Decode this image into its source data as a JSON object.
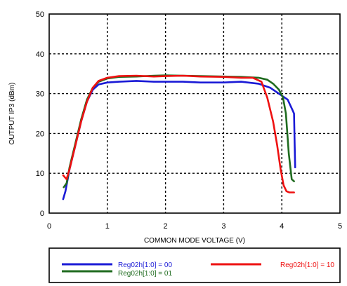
{
  "chart_data": {
    "type": "line",
    "title": "",
    "xlabel": "COMMON MODE VOLTAGE (V)",
    "ylabel": "OUTPUT IP3 (dBm)",
    "xlim": [
      0,
      5
    ],
    "ylim": [
      0,
      50
    ],
    "xticks": [
      "0",
      "1",
      "2",
      "3",
      "4",
      "5"
    ],
    "yticks": [
      "0",
      "10",
      "20",
      "30",
      "40",
      "50"
    ],
    "grid": true,
    "legend_placement": "bottom",
    "series": [
      {
        "name": "Reg02h[1:0] = 00",
        "color": "#1a1ad6",
        "points": [
          [
            0.24,
            3.5
          ],
          [
            0.28,
            5.5
          ],
          [
            0.35,
            11
          ],
          [
            0.45,
            17
          ],
          [
            0.55,
            23
          ],
          [
            0.65,
            28
          ],
          [
            0.75,
            31
          ],
          [
            0.85,
            32.3
          ],
          [
            1.0,
            32.8
          ],
          [
            1.2,
            33.0
          ],
          [
            1.5,
            33.2
          ],
          [
            1.8,
            33.0
          ],
          [
            2.0,
            33.0
          ],
          [
            2.3,
            33.0
          ],
          [
            2.6,
            32.8
          ],
          [
            3.0,
            32.8
          ],
          [
            3.3,
            33.0
          ],
          [
            3.6,
            32.5
          ],
          [
            3.8,
            31.5
          ],
          [
            4.0,
            29.5
          ],
          [
            4.1,
            28.5
          ],
          [
            4.18,
            26
          ],
          [
            4.21,
            25
          ],
          [
            4.22,
            18
          ],
          [
            4.23,
            11.5
          ]
        ]
      },
      {
        "name": "Reg02h[1:0] = 01",
        "color": "#1f6b1f",
        "points": [
          [
            0.25,
            6.5
          ],
          [
            0.3,
            7.5
          ],
          [
            0.35,
            11.5
          ],
          [
            0.45,
            17.5
          ],
          [
            0.55,
            23.5
          ],
          [
            0.65,
            28.5
          ],
          [
            0.75,
            31.5
          ],
          [
            0.85,
            33
          ],
          [
            1.0,
            33.8
          ],
          [
            1.2,
            34.2
          ],
          [
            1.5,
            34.3
          ],
          [
            1.8,
            34.5
          ],
          [
            2.0,
            34.6
          ],
          [
            2.3,
            34.5
          ],
          [
            2.6,
            34.4
          ],
          [
            3.0,
            34.3
          ],
          [
            3.3,
            34.2
          ],
          [
            3.6,
            34.0
          ],
          [
            3.75,
            33.5
          ],
          [
            3.85,
            32.5
          ],
          [
            3.95,
            31
          ],
          [
            4.02,
            29
          ],
          [
            4.07,
            25
          ],
          [
            4.12,
            15
          ],
          [
            4.17,
            8.5
          ],
          [
            4.21,
            8
          ]
        ]
      },
      {
        "name": "Reg02h[1:0] = 10",
        "color": "#ee1111",
        "points": [
          [
            0.24,
            9.5
          ],
          [
            0.3,
            8.5
          ],
          [
            0.35,
            11
          ],
          [
            0.45,
            17
          ],
          [
            0.55,
            23
          ],
          [
            0.65,
            28
          ],
          [
            0.75,
            31.5
          ],
          [
            0.85,
            33.2
          ],
          [
            1.0,
            34
          ],
          [
            1.2,
            34.4
          ],
          [
            1.5,
            34.5
          ],
          [
            1.8,
            34.3
          ],
          [
            2.0,
            34.4
          ],
          [
            2.3,
            34.5
          ],
          [
            2.6,
            34.3
          ],
          [
            3.0,
            34.2
          ],
          [
            3.3,
            34.0
          ],
          [
            3.5,
            34.0
          ],
          [
            3.65,
            33
          ],
          [
            3.75,
            29
          ],
          [
            3.85,
            23
          ],
          [
            3.92,
            17
          ],
          [
            3.98,
            11
          ],
          [
            4.03,
            7
          ],
          [
            4.08,
            5.5
          ],
          [
            4.13,
            5.2
          ],
          [
            4.21,
            5.2
          ]
        ]
      }
    ]
  }
}
